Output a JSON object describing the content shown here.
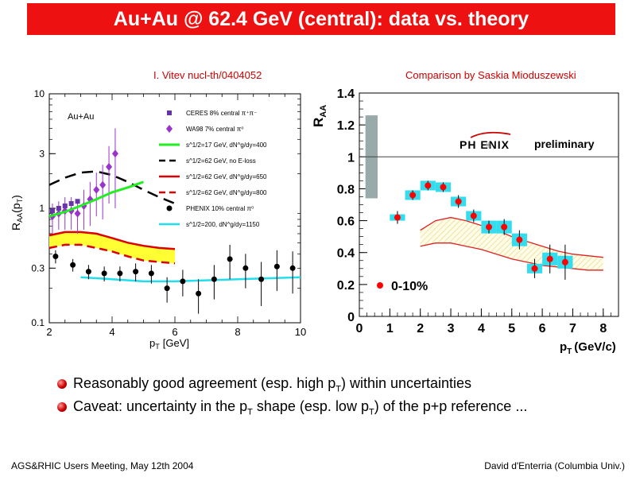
{
  "header": {
    "title": "Au+Au @ 62.4 GeV (central): data vs. theory"
  },
  "left_plot": {
    "citation": "I. Vitev nucl-th/0404052",
    "system_label": "Au+Au",
    "xlabel_main": "p",
    "xlabel_sub": "T",
    "xlabel_unit": "[GeV]",
    "ylabel_main": "R",
    "ylabel_sub": "AA",
    "ylabel_arg": "(p",
    "ylabel_arg_sub": "T",
    "ylabel_close": ")",
    "x_ticks": [
      "2",
      "4",
      "6",
      "8",
      "10"
    ],
    "y_ticks": [
      "0.1",
      "0.3",
      "1",
      "3",
      "10"
    ],
    "legend": [
      "CERES 8% central π⁺π⁻",
      "WA98 7% central π⁰",
      "s^1/2=17 GeV, dN^g/dy=400",
      "s^1/2=62 GeV, no E-loss",
      "s^1/2=62 GeV, dN^g/dy=650",
      "s^1/2=62 GeV, dN^g/dy=800",
      "PHENIX 10% central π⁰",
      "s^1/2=200, dN^g/dy=1150"
    ]
  },
  "right_plot": {
    "citation": "Comparison by Saskia Mioduszewski",
    "logo_text": "PH ENIX",
    "logo_sub": "preliminary",
    "centrality_label": "0-10%",
    "xlabel_main": "p",
    "xlabel_sub": "T",
    "xlabel_unit": "(GeV/c)",
    "ylabel_main": "R",
    "ylabel_sub": "AA",
    "x_ticks": [
      "0",
      "1",
      "2",
      "3",
      "4",
      "5",
      "6",
      "7",
      "8"
    ],
    "y_ticks": [
      "0",
      "0.2",
      "0.4",
      "0.6",
      "0.8",
      "1",
      "1.2",
      "1.4"
    ]
  },
  "bullets": [
    {
      "pre": "Reasonably good agreement (esp. high p",
      "sub": "T",
      "post": ") within uncertainties"
    },
    {
      "pre": "Caveat: uncertainty in the p",
      "sub": "T",
      "mid": " shape (esp. low p",
      "sub2": "T",
      "post": ") of the p+p reference ..."
    }
  ],
  "footer": {
    "left": "AGS&RHIC Users Meeting, May 12th 2004",
    "right": "David d'Enterria (Columbia Univ.)"
  },
  "colors": {
    "title_bar": "#ee1111",
    "phenix_point": "#ff0000",
    "syst_box": "#33ddee",
    "norm_box": "#99aaaa",
    "band_fill": "#ffff33",
    "green_curve": "#22ee22",
    "wa98": "#9933cc"
  },
  "chart_data": [
    {
      "type": "line",
      "yscale": "log",
      "xlim": [
        2,
        10
      ],
      "ylim": [
        0.1,
        10
      ],
      "series": [
        {
          "name": "CERES 8% central π⁺π⁻",
          "kind": "markers-square",
          "x": [
            2.1,
            2.3,
            2.5,
            2.7,
            2.9
          ],
          "y": [
            0.95,
            1.0,
            1.05,
            1.1,
            1.15
          ]
        },
        {
          "name": "WA98 7% central π⁰",
          "kind": "markers-diamond",
          "x": [
            2.1,
            2.3,
            2.5,
            2.7,
            2.9,
            3.1,
            3.3,
            3.5,
            3.7,
            3.9,
            4.1
          ],
          "y": [
            0.85,
            0.9,
            0.95,
            0.95,
            0.9,
            1.05,
            1.2,
            1.45,
            1.6,
            2.3,
            3.0
          ],
          "yerr": [
            0.25,
            0.25,
            0.3,
            0.3,
            0.3,
            0.4,
            0.5,
            0.6,
            0.8,
            1.2,
            2.0
          ]
        },
        {
          "name": "s^1/2=17 GeV, dN^g/dy=400",
          "kind": "line-green",
          "x": [
            2,
            2.5,
            3,
            3.5,
            4,
            4.5,
            5
          ],
          "y": [
            0.85,
            0.93,
            1.05,
            1.2,
            1.38,
            1.52,
            1.7
          ]
        },
        {
          "name": "s^1/2=62 GeV, no E-loss",
          "kind": "line-black-dash",
          "x": [
            2,
            2.5,
            3,
            3.5,
            4,
            4.5,
            5,
            5.5,
            6
          ],
          "y": [
            1.6,
            1.85,
            2.05,
            2.1,
            1.95,
            1.7,
            1.45,
            1.25,
            1.1
          ]
        },
        {
          "name": "s^1/2=62 GeV, dN^g/dy=650",
          "kind": "line-red",
          "x": [
            2,
            2.5,
            3,
            3.5,
            4,
            4.5,
            5,
            5.5,
            6
          ],
          "y": [
            0.58,
            0.62,
            0.62,
            0.6,
            0.55,
            0.5,
            0.47,
            0.45,
            0.44
          ]
        },
        {
          "name": "s^1/2=62 GeV, dN^g/dy=800",
          "kind": "line-red-dash",
          "x": [
            2,
            2.5,
            3,
            3.5,
            4,
            4.5,
            5,
            5.5,
            6
          ],
          "y": [
            0.45,
            0.48,
            0.48,
            0.45,
            0.42,
            0.38,
            0.35,
            0.34,
            0.33
          ]
        },
        {
          "name": "PHENIX 10% central π⁰",
          "kind": "markers-circle",
          "x": [
            2.2,
            2.75,
            3.25,
            3.75,
            4.25,
            4.75,
            5.25,
            5.75,
            6.25,
            6.75,
            7.25,
            7.75,
            8.25,
            8.75,
            9.25,
            9.75
          ],
          "y": [
            0.38,
            0.32,
            0.28,
            0.27,
            0.27,
            0.28,
            0.27,
            0.2,
            0.23,
            0.18,
            0.24,
            0.36,
            0.3,
            0.24,
            0.31,
            0.3
          ],
          "yerr": [
            0.05,
            0.04,
            0.04,
            0.04,
            0.04,
            0.05,
            0.05,
            0.05,
            0.06,
            0.06,
            0.08,
            0.12,
            0.1,
            0.1,
            0.12,
            0.12
          ]
        },
        {
          "name": "s^1/2=200, dN^g/dy=1150",
          "kind": "line-cyan",
          "x": [
            3,
            4,
            5,
            6,
            7,
            8,
            9,
            10
          ],
          "y": [
            0.25,
            0.24,
            0.23,
            0.23,
            0.235,
            0.24,
            0.245,
            0.25
          ]
        }
      ]
    },
    {
      "type": "scatter",
      "xlim": [
        0,
        8.5
      ],
      "ylim": [
        0,
        1.4
      ],
      "reference_line": 1,
      "normalization_box": {
        "x": [
          0.2,
          0.6
        ],
        "y": [
          0.74,
          1.26
        ]
      },
      "series": [
        {
          "name": "0-10%",
          "kind": "markers-circle",
          "x": [
            1.25,
            1.75,
            2.25,
            2.75,
            3.25,
            3.75,
            4.25,
            4.75,
            5.25,
            5.75,
            6.25,
            6.75
          ],
          "y": [
            0.62,
            0.76,
            0.82,
            0.81,
            0.72,
            0.63,
            0.56,
            0.56,
            0.48,
            0.3,
            0.36,
            0.34
          ],
          "yerr": [
            0.04,
            0.03,
            0.03,
            0.03,
            0.04,
            0.04,
            0.04,
            0.05,
            0.06,
            0.06,
            0.09,
            0.11
          ],
          "syst": [
            0.02,
            0.03,
            0.03,
            0.03,
            0.03,
            0.03,
            0.04,
            0.04,
            0.04,
            0.03,
            0.04,
            0.04
          ]
        },
        {
          "name": "",
          "kind": "theory-band",
          "x": [
            2.0,
            2.5,
            3.0,
            3.5,
            4.0,
            4.5,
            5.0,
            5.5,
            6.0,
            6.5,
            7.0,
            7.5,
            8.0
          ],
          "y_high": [
            0.54,
            0.6,
            0.62,
            0.6,
            0.57,
            0.54,
            0.5,
            0.47,
            0.44,
            0.41,
            0.39,
            0.38,
            0.37
          ],
          "y_low": [
            0.44,
            0.46,
            0.46,
            0.44,
            0.42,
            0.39,
            0.36,
            0.34,
            0.32,
            0.31,
            0.3,
            0.29,
            0.29
          ]
        }
      ]
    }
  ]
}
